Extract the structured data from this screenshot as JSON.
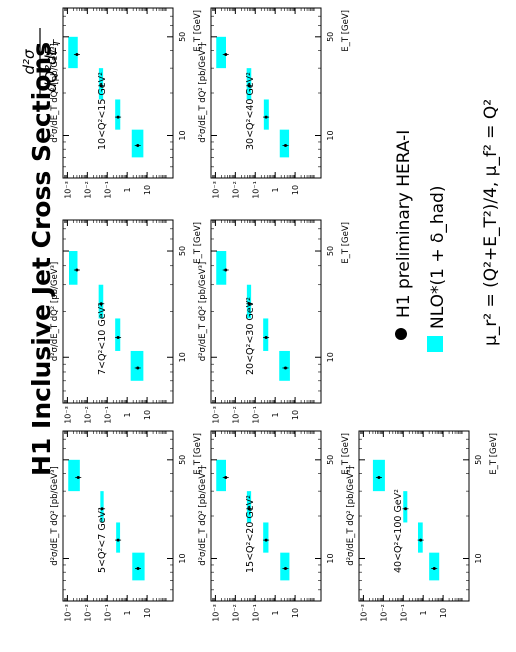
{
  "figure": {
    "title": "H1 Inclusive Jet Cross Sections",
    "formula_text": "d²σ / dQ²dE_T",
    "formula_num": "d²σ",
    "formula_den": "dQ²dE",
    "formula_den_sub": "T",
    "y_axis_label": "d²σ/dE_T dQ² [pb/GeV³]",
    "x_axis_label": "E_T [GeV]",
    "colors": {
      "band": "#00ffff",
      "data": "#000000",
      "frame": "#000000"
    }
  },
  "legend": {
    "data_label": "H1 preliminary HERA-I",
    "nlo_label": "NLO*(1 + δ_had)",
    "scales_text": "μ_r² = (Q²+E_T²)/4, μ_f² = Q²"
  },
  "chart_data": [
    {
      "type": "scatter",
      "panel_label": "5<Q²<7 GeV²",
      "xscale": "log",
      "yscale": "log",
      "xlim": [
        5,
        80
      ],
      "ylim": [
        0.0006,
        200
      ],
      "x_ticks": [
        {
          "value": 10,
          "label": "10"
        },
        {
          "value": 50,
          "label": "50"
        }
      ],
      "y_ticks": [
        {
          "value": 0.001,
          "label": "10⁻³"
        },
        {
          "value": 0.01,
          "label": "10⁻²"
        },
        {
          "value": 0.1,
          "label": "10⁻¹"
        },
        {
          "value": 1,
          "label": "1"
        },
        {
          "value": 10,
          "label": "10"
        }
      ],
      "bins": [
        [
          7,
          11
        ],
        [
          11,
          18
        ],
        [
          18,
          30
        ],
        [
          30,
          50
        ]
      ],
      "x": [
        8.5,
        13.5,
        22.5,
        37.5
      ],
      "y": [
        3.5,
        0.35,
        0.055,
        0.0035
      ],
      "nlo_band": [
        [
          1.8,
          7.5
        ],
        [
          0.28,
          0.44
        ],
        [
          0.045,
          0.066
        ],
        [
          0.0011,
          0.0042
        ]
      ]
    },
    {
      "type": "scatter",
      "panel_label": "7<Q²<10 GeV²",
      "xscale": "log",
      "yscale": "log",
      "xlim": [
        5,
        80
      ],
      "ylim": [
        0.0006,
        200
      ],
      "x_ticks": [
        {
          "value": 10,
          "label": "10"
        },
        {
          "value": 50,
          "label": "50"
        }
      ],
      "y_ticks": [
        {
          "value": 0.001,
          "label": "10⁻³"
        },
        {
          "value": 0.01,
          "label": "10⁻²"
        },
        {
          "value": 0.1,
          "label": "10⁻¹"
        },
        {
          "value": 1,
          "label": "1"
        },
        {
          "value": 10,
          "label": "10"
        }
      ],
      "bins": [
        [
          7,
          11
        ],
        [
          11,
          18
        ],
        [
          18,
          30
        ],
        [
          30,
          50
        ]
      ],
      "x": [
        8.5,
        13.5,
        22.5,
        37.5
      ],
      "y": [
        3.4,
        0.35,
        0.05,
        0.003
      ],
      "nlo_band": [
        [
          1.5,
          6.5
        ],
        [
          0.25,
          0.45
        ],
        [
          0.037,
          0.063
        ],
        [
          0.0012,
          0.0032
        ]
      ]
    },
    {
      "type": "scatter",
      "panel_label": "10<Q²<15 GeV²",
      "xscale": "log",
      "yscale": "log",
      "xlim": [
        5,
        80
      ],
      "ylim": [
        0.0006,
        200
      ],
      "x_ticks": [
        {
          "value": 10,
          "label": "10"
        },
        {
          "value": 50,
          "label": "50"
        }
      ],
      "y_ticks": [
        {
          "value": 0.001,
          "label": "10⁻³"
        },
        {
          "value": 0.01,
          "label": "10⁻²"
        },
        {
          "value": 0.1,
          "label": "10⁻¹"
        },
        {
          "value": 1,
          "label": "1"
        },
        {
          "value": 10,
          "label": "10"
        }
      ],
      "bins": [
        [
          7,
          11
        ],
        [
          11,
          18
        ],
        [
          18,
          30
        ],
        [
          30,
          50
        ]
      ],
      "x": [
        8.5,
        13.5,
        22.5,
        37.5
      ],
      "y": [
        3.4,
        0.35,
        0.05,
        0.003
      ],
      "nlo_band": [
        [
          1.7,
          6.5
        ],
        [
          0.25,
          0.45
        ],
        [
          0.038,
          0.062
        ],
        [
          0.0011,
          0.0033
        ]
      ]
    },
    {
      "type": "scatter",
      "panel_label": "15<Q²<20 GeV²",
      "xscale": "log",
      "yscale": "log",
      "xlim": [
        5,
        80
      ],
      "ylim": [
        0.0006,
        200
      ],
      "x_ticks": [
        {
          "value": 10,
          "label": "10"
        },
        {
          "value": 50,
          "label": "50"
        }
      ],
      "y_ticks": [
        {
          "value": 0.001,
          "label": "10⁻³"
        },
        {
          "value": 0.01,
          "label": "10⁻²"
        },
        {
          "value": 0.1,
          "label": "10⁻¹"
        },
        {
          "value": 1,
          "label": "1"
        },
        {
          "value": 10,
          "label": "10"
        }
      ],
      "bins": [
        [
          7,
          11
        ],
        [
          11,
          18
        ],
        [
          18,
          30
        ],
        [
          30,
          50
        ]
      ],
      "x": [
        8.5,
        13.5,
        22.5,
        37.5
      ],
      "y": [
        3.3,
        0.35,
        0.05,
        0.0033
      ],
      "nlo_band": [
        [
          1.8,
          5.2
        ],
        [
          0.25,
          0.46
        ],
        [
          0.038,
          0.062
        ],
        [
          0.0011,
          0.0034
        ]
      ]
    },
    {
      "type": "scatter",
      "panel_label": "20<Q²<30 GeV²",
      "xscale": "log",
      "yscale": "log",
      "xlim": [
        5,
        80
      ],
      "ylim": [
        0.0006,
        200
      ],
      "x_ticks": [
        {
          "value": 10,
          "label": "10"
        },
        {
          "value": 50,
          "label": "50"
        }
      ],
      "y_ticks": [
        {
          "value": 0.001,
          "label": "10⁻³"
        },
        {
          "value": 0.01,
          "label": "10⁻²"
        },
        {
          "value": 0.1,
          "label": "10⁻¹"
        },
        {
          "value": 1,
          "label": "1"
        },
        {
          "value": 10,
          "label": "10"
        }
      ],
      "bins": [
        [
          7,
          11
        ],
        [
          11,
          18
        ],
        [
          18,
          30
        ],
        [
          30,
          50
        ]
      ],
      "x": [
        8.5,
        13.5,
        22.5,
        37.5
      ],
      "y": [
        3.3,
        0.35,
        0.05,
        0.0033
      ],
      "nlo_band": [
        [
          1.6,
          5.5
        ],
        [
          0.25,
          0.45
        ],
        [
          0.038,
          0.062
        ],
        [
          0.0011,
          0.0035
        ]
      ]
    },
    {
      "type": "scatter",
      "panel_label": "30<Q²<40 GeV²",
      "xscale": "log",
      "yscale": "log",
      "xlim": [
        5,
        80
      ],
      "ylim": [
        0.0006,
        200
      ],
      "x_ticks": [
        {
          "value": 10,
          "label": "10"
        },
        {
          "value": 50,
          "label": "50"
        }
      ],
      "y_ticks": [
        {
          "value": 0.001,
          "label": "10⁻³"
        },
        {
          "value": 0.01,
          "label": "10⁻²"
        },
        {
          "value": 0.1,
          "label": "10⁻¹"
        },
        {
          "value": 1,
          "label": "1"
        },
        {
          "value": 10,
          "label": "10"
        }
      ],
      "bins": [
        [
          7,
          11
        ],
        [
          11,
          18
        ],
        [
          18,
          30
        ],
        [
          30,
          50
        ]
      ],
      "x": [
        8.5,
        13.5,
        22.5,
        37.5
      ],
      "y": [
        3.3,
        0.35,
        0.05,
        0.0033
      ],
      "nlo_band": [
        [
          1.7,
          5.0
        ],
        [
          0.27,
          0.48
        ],
        [
          0.037,
          0.063
        ],
        [
          0.0011,
          0.0034
        ]
      ]
    },
    {
      "type": "scatter",
      "panel_label": "40<Q²<100 GeV²",
      "xscale": "log",
      "yscale": "log",
      "xlim": [
        5,
        80
      ],
      "ylim": [
        0.0006,
        200
      ],
      "x_ticks": [
        {
          "value": 10,
          "label": "10"
        },
        {
          "value": 50,
          "label": "50"
        }
      ],
      "y_ticks": [
        {
          "value": 0.001,
          "label": "10⁻³"
        },
        {
          "value": 0.01,
          "label": "10⁻²"
        },
        {
          "value": 0.1,
          "label": "10⁻¹"
        },
        {
          "value": 1,
          "label": "1"
        },
        {
          "value": 10,
          "label": "10"
        }
      ],
      "bins": [
        [
          7,
          11
        ],
        [
          11,
          18
        ],
        [
          18,
          30
        ],
        [
          30,
          50
        ]
      ],
      "x": [
        8.5,
        13.5,
        22.5,
        37.5
      ],
      "y": [
        3.6,
        0.75,
        0.13,
        0.006
      ],
      "nlo_band": [
        [
          2.0,
          6.4
        ],
        [
          0.55,
          0.95
        ],
        [
          0.1,
          0.16
        ],
        [
          0.003,
          0.012
        ]
      ]
    }
  ]
}
